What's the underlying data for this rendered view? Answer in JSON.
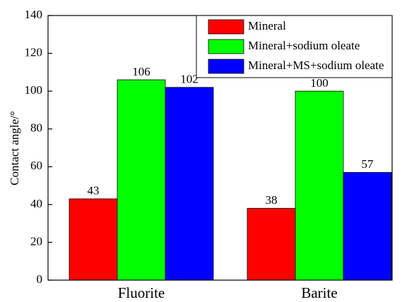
{
  "chart_data": {
    "type": "bar",
    "y_label": "Contact angle/°",
    "categories": [
      "Fluorite",
      "Barite"
    ],
    "series": [
      {
        "name": "Mineral",
        "color": "#ff0000",
        "values": [
          43,
          38
        ]
      },
      {
        "name": "Mineral+sodium oleate",
        "color": "#00ff00",
        "values": [
          106,
          100
        ]
      },
      {
        "name": "Mineral+MS+sodium oleate",
        "color": "#0000ff",
        "values": [
          102,
          57
        ]
      }
    ],
    "ylim": [
      0,
      140
    ],
    "yticks": [
      0,
      20,
      40,
      60,
      80,
      100,
      120,
      140
    ],
    "legend": "top-right"
  }
}
